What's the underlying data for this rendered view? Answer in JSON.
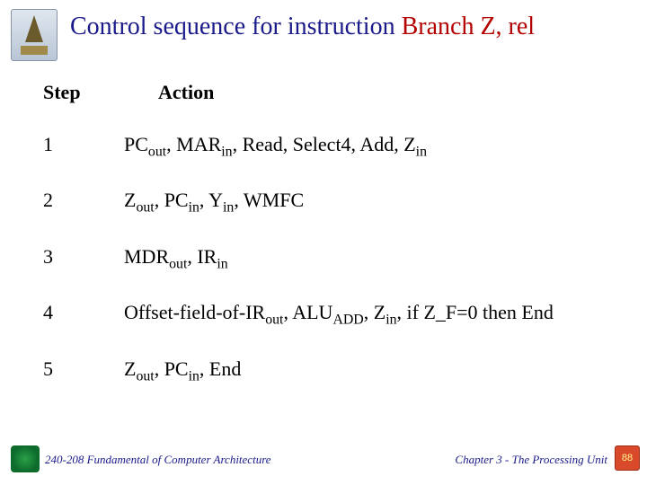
{
  "title": {
    "part1": "Control sequence for instruction ",
    "part2": "Branch Z, rel",
    "color_main": "#1a1a8a",
    "color_accent": "#b30000",
    "fontsize": 28
  },
  "table": {
    "headers": {
      "step": "Step",
      "action": "Action"
    },
    "header_fontsize": 22,
    "row_fontsize": 22,
    "rows": [
      {
        "step": "1",
        "tokens": [
          {
            "t": "PC"
          },
          {
            "t": "out",
            "sub": true
          },
          {
            "t": ", MAR"
          },
          {
            "t": "in",
            "sub": true
          },
          {
            "t": ", Read, Select4, Add, Z"
          },
          {
            "t": "in",
            "sub": true
          }
        ]
      },
      {
        "step": "2",
        "tokens": [
          {
            "t": "Z"
          },
          {
            "t": "out",
            "sub": true
          },
          {
            "t": ", PC"
          },
          {
            "t": "in",
            "sub": true
          },
          {
            "t": ", Y"
          },
          {
            "t": "in",
            "sub": true
          },
          {
            "t": ", WMFC"
          }
        ]
      },
      {
        "step": "3",
        "tokens": [
          {
            "t": "MDR"
          },
          {
            "t": "out",
            "sub": true
          },
          {
            "t": ", IR"
          },
          {
            "t": "in",
            "sub": true
          }
        ]
      },
      {
        "step": "4",
        "tokens": [
          {
            "t": "Offset-field-of-IR"
          },
          {
            "t": "out",
            "sub": true
          },
          {
            "t": ", ALU"
          },
          {
            "t": "ADD",
            "sub": true
          },
          {
            "t": ", Z"
          },
          {
            "t": "in",
            "sub": true
          },
          {
            "t": ", if Z_F=0 then End"
          }
        ]
      },
      {
        "step": "5",
        "tokens": [
          {
            "t": "Z"
          },
          {
            "t": "out",
            "sub": true
          },
          {
            "t": ", PC"
          },
          {
            "t": "in",
            "sub": true
          },
          {
            "t": ", End"
          }
        ]
      }
    ]
  },
  "footer": {
    "left": "240-208 Fundamental of Computer Architecture",
    "right": "Chapter 3 - The Processing Unit",
    "page": "88",
    "text_color": "#1a1a8a",
    "chip_color": "#d84a2a",
    "fontsize": 13
  },
  "colors": {
    "background": "#ffffff",
    "body_text": "#000000"
  }
}
